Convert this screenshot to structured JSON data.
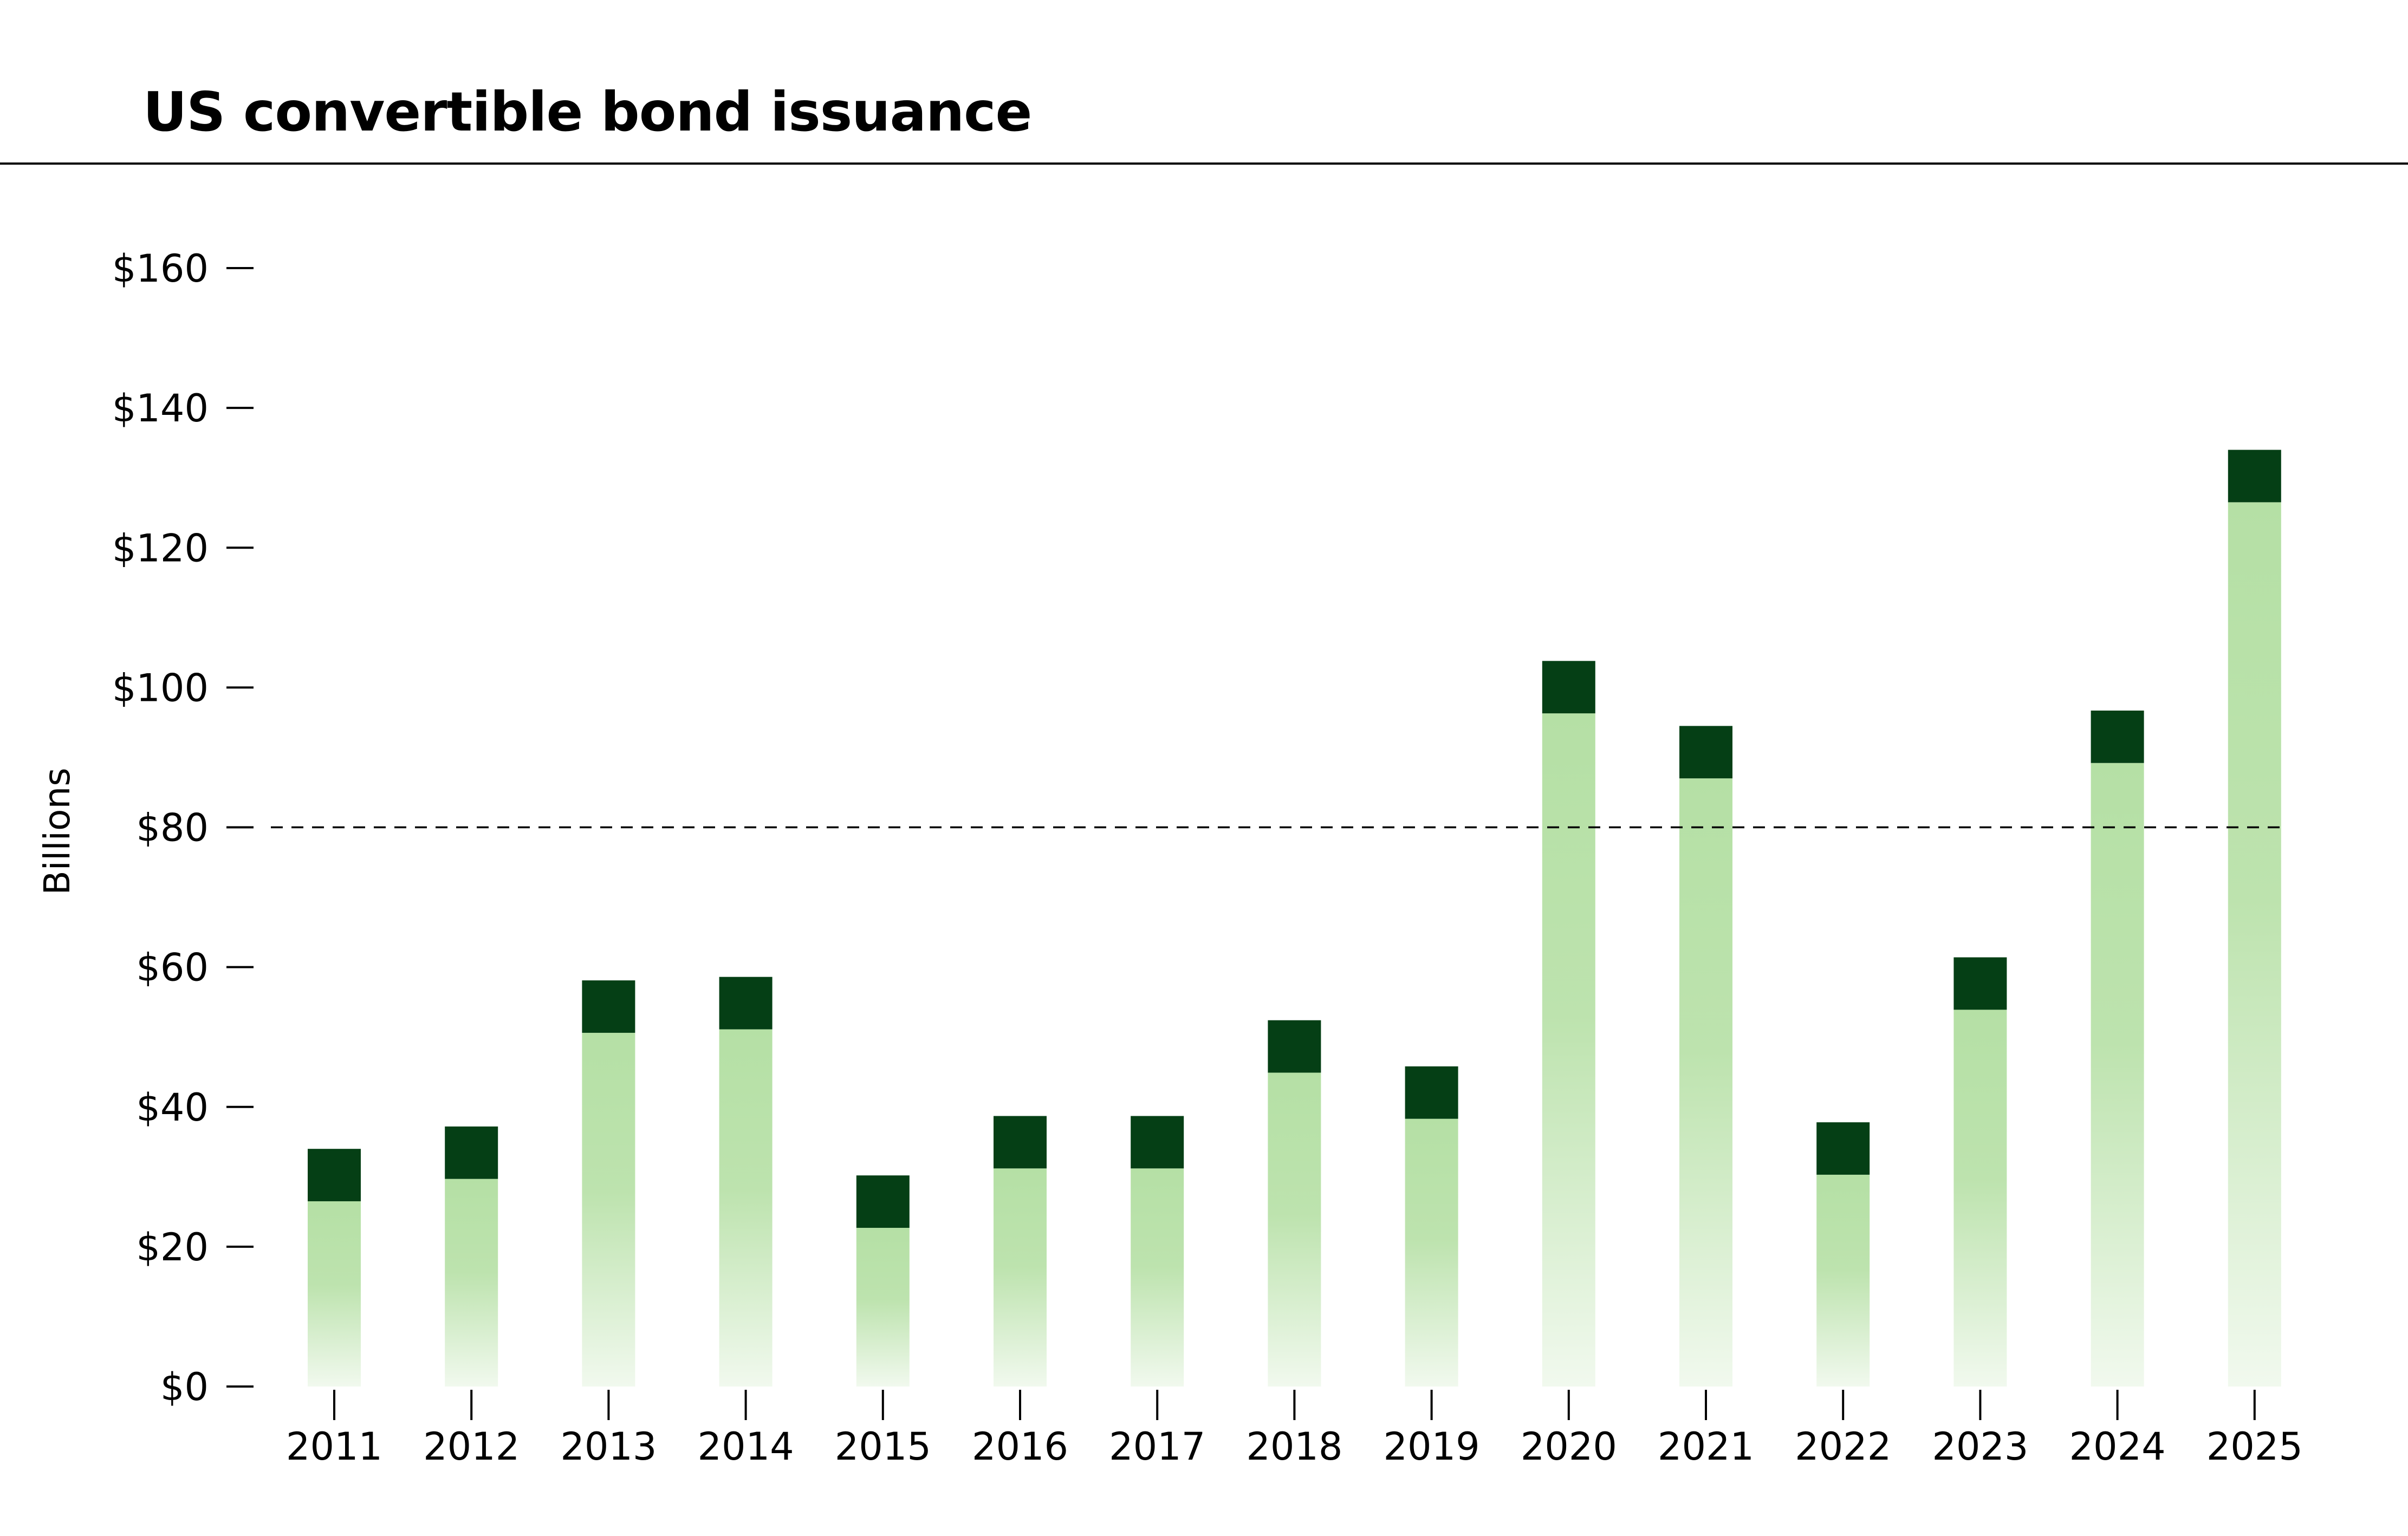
{
  "chart_data": {
    "type": "bar",
    "stacked": true,
    "title": "US convertible bond issuance",
    "xlabel": "",
    "ylabel": "Billions",
    "ylim": [
      0,
      160
    ],
    "yticks": [
      0,
      20,
      40,
      60,
      80,
      100,
      120,
      140,
      160
    ],
    "ytick_labels": [
      "$0",
      "$20",
      "$40",
      "$60",
      "$80",
      "$100",
      "$120",
      "$140",
      "$160"
    ],
    "reference_line": {
      "y": 80,
      "style": "dashed"
    },
    "legend": "none",
    "grid": false,
    "categories": [
      "2011",
      "2012",
      "2013",
      "2014",
      "2015",
      "2016",
      "2017",
      "2018",
      "2019",
      "2020",
      "2021",
      "2022",
      "2023",
      "2024",
      "2025"
    ],
    "series": [
      {
        "color_top": "#b5e0a5",
        "color_bottom": "#f1f9ee",
        "values": [
          26.5,
          29.7,
          50.6,
          51.1,
          22.7,
          31.2,
          31.2,
          44.9,
          38.3,
          96.3,
          87.0,
          30.3,
          53.9,
          89.2,
          126.5
        ]
      },
      {
        "color": "#053f15",
        "values": [
          7.5,
          7.5,
          7.5,
          7.5,
          7.5,
          7.5,
          7.5,
          7.5,
          7.5,
          7.5,
          7.5,
          7.5,
          7.5,
          7.5,
          7.5
        ]
      }
    ]
  }
}
